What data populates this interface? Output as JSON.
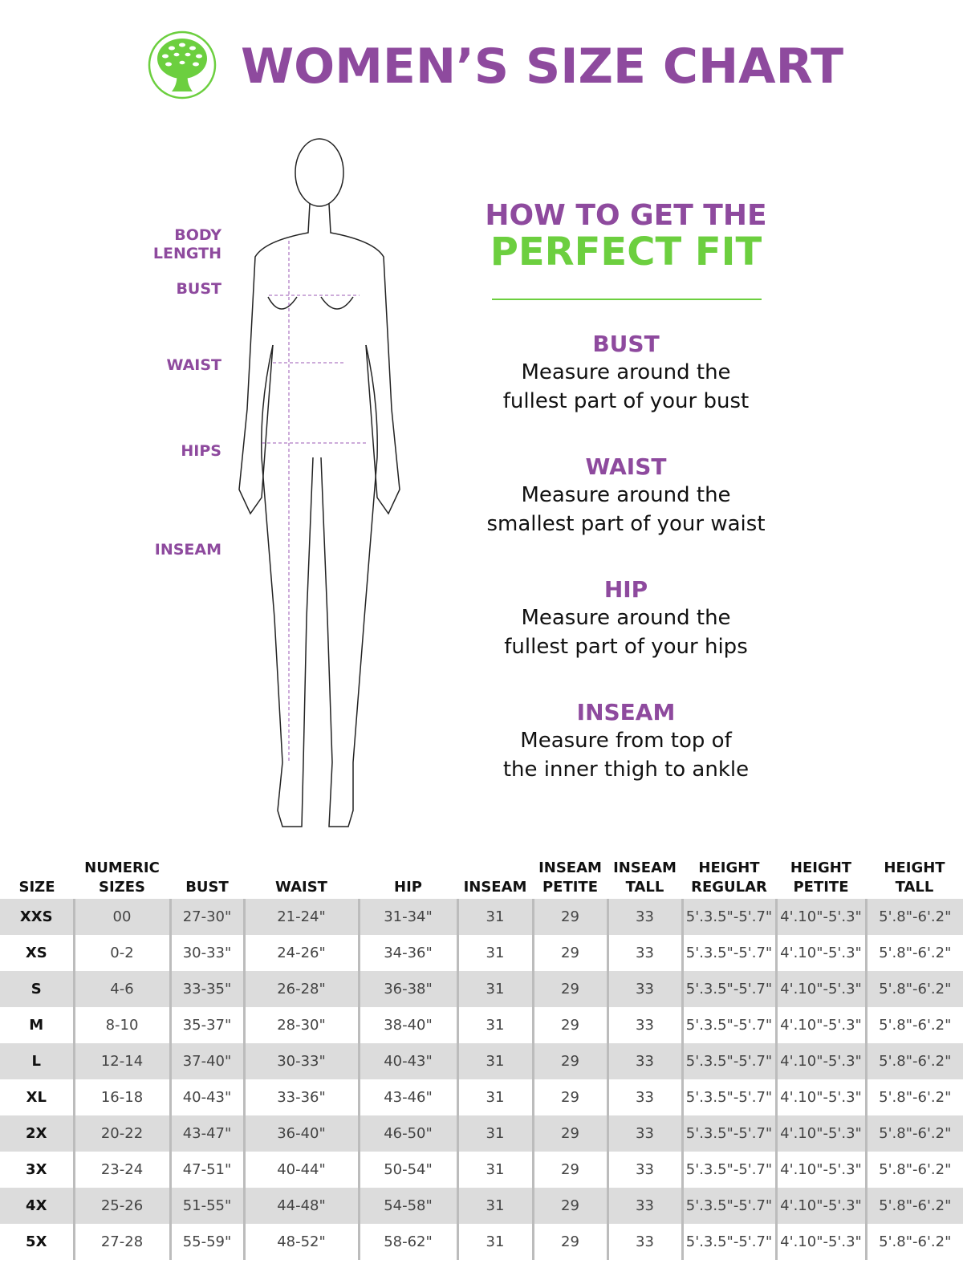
{
  "header": {
    "title": "WOMEN’S SIZE CHART",
    "logo": "tree-logo",
    "brand_color": "#6ccf3f",
    "accent_color": "#8e4a9e"
  },
  "body_labels": {
    "body_length_1": "BODY",
    "body_length_2": "LENGTH",
    "bust": "BUST",
    "waist": "WAIST",
    "hips": "HIPS",
    "inseam": "INSEAM"
  },
  "guide": {
    "heading_1": "HOW TO GET THE",
    "heading_2": "PERFECT FIT",
    "tips": [
      {
        "title": "BUST",
        "line1": "Measure around the",
        "line2": "fullest part of your bust"
      },
      {
        "title": "WAIST",
        "line1": "Measure around the",
        "line2": "smallest part of your waist"
      },
      {
        "title": "HIP",
        "line1": "Measure around the",
        "line2": "fullest part of your hips"
      },
      {
        "title": "INSEAM",
        "line1": "Measure from top of",
        "line2": "the inner thigh to ankle"
      }
    ]
  },
  "table": {
    "headers": [
      [
        "SIZE",
        ""
      ],
      [
        "NUMERIC",
        "SIZES"
      ],
      [
        "BUST",
        ""
      ],
      [
        "WAIST",
        ""
      ],
      [
        "HIP",
        ""
      ],
      [
        "INSEAM",
        ""
      ],
      [
        "INSEAM",
        "PETITE"
      ],
      [
        "INSEAM",
        "TALL"
      ],
      [
        "HEIGHT",
        "REGULAR"
      ],
      [
        "HEIGHT",
        "PETITE"
      ],
      [
        "HEIGHT",
        "TALL"
      ]
    ],
    "rows": [
      [
        "XXS",
        "00",
        "27-30\"",
        "21-24\"",
        "31-34\"",
        "31",
        "29",
        "33",
        "5'.3.5\"-5'.7\"",
        "4'.10\"-5'.3\"",
        "5'.8\"-6'.2\""
      ],
      [
        "XS",
        "0-2",
        "30-33\"",
        "24-26\"",
        "34-36\"",
        "31",
        "29",
        "33",
        "5'.3.5\"-5'.7\"",
        "4'.10\"-5'.3\"",
        "5'.8\"-6'.2\""
      ],
      [
        "S",
        "4-6",
        "33-35\"",
        "26-28\"",
        "36-38\"",
        "31",
        "29",
        "33",
        "5'.3.5\"-5'.7\"",
        "4'.10\"-5'.3\"",
        "5'.8\"-6'.2\""
      ],
      [
        "M",
        "8-10",
        "35-37\"",
        "28-30\"",
        "38-40\"",
        "31",
        "29",
        "33",
        "5'.3.5\"-5'.7\"",
        "4'.10\"-5'.3\"",
        "5'.8\"-6'.2\""
      ],
      [
        "L",
        "12-14",
        "37-40\"",
        "30-33\"",
        "40-43\"",
        "31",
        "29",
        "33",
        "5'.3.5\"-5'.7\"",
        "4'.10\"-5'.3\"",
        "5'.8\"-6'.2\""
      ],
      [
        "XL",
        "16-18",
        "40-43\"",
        "33-36\"",
        "43-46\"",
        "31",
        "29",
        "33",
        "5'.3.5\"-5'.7\"",
        "4'.10\"-5'.3\"",
        "5'.8\"-6'.2\""
      ],
      [
        "2X",
        "20-22",
        "43-47\"",
        "36-40\"",
        "46-50\"",
        "31",
        "29",
        "33",
        "5'.3.5\"-5'.7\"",
        "4'.10\"-5'.3\"",
        "5'.8\"-6'.2\""
      ],
      [
        "3X",
        "23-24",
        "47-51\"",
        "40-44\"",
        "50-54\"",
        "31",
        "29",
        "33",
        "5'.3.5\"-5'.7\"",
        "4'.10\"-5'.3\"",
        "5'.8\"-6'.2\""
      ],
      [
        "4X",
        "25-26",
        "51-55\"",
        "44-48\"",
        "54-58\"",
        "31",
        "29",
        "33",
        "5'.3.5\"-5'.7\"",
        "4'.10\"-5'.3\"",
        "5'.8\"-6'.2\""
      ],
      [
        "5X",
        "27-28",
        "55-59\"",
        "48-52\"",
        "58-62\"",
        "31",
        "29",
        "33",
        "5'.3.5\"-5'.7\"",
        "4'.10\"-5'.3\"",
        "5'.8\"-6'.2\""
      ]
    ]
  }
}
